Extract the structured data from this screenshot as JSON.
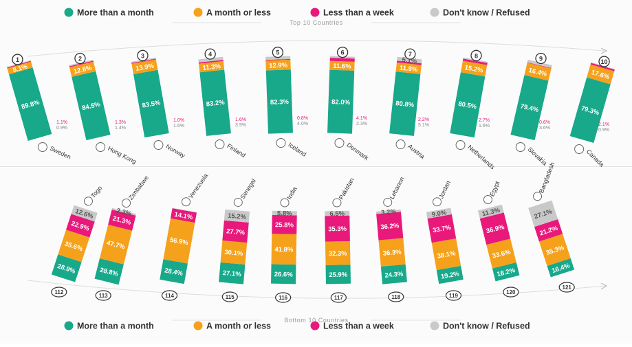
{
  "colors": {
    "more_than_month": "#18a88a",
    "month_or_less": "#f5a11c",
    "less_than_week": "#e8197a",
    "dont_know": "#c9c9c9"
  },
  "legend": [
    {
      "key": "more_than_month",
      "label": "More than a month"
    },
    {
      "key": "month_or_less",
      "label": "A month or less"
    },
    {
      "key": "less_than_week",
      "label": "Less than a week"
    },
    {
      "key": "dont_know",
      "label": "Don't know / Refused"
    }
  ],
  "chart_data": [
    {
      "type": "bar",
      "title": "Top 10 Countries",
      "stacked": true,
      "categories": [
        "Sweden",
        "Hong Kong",
        "Norway",
        "Finland",
        "Iceland",
        "Denmark",
        "Austria",
        "Netherlands",
        "Slovakia",
        "Canada"
      ],
      "ranks": [
        "1",
        "2",
        "3",
        "4",
        "5",
        "6",
        "7",
        "8",
        "9",
        "10"
      ],
      "series": [
        {
          "name": "More than a month",
          "key": "more_than_month",
          "values": [
            89.8,
            84.5,
            83.5,
            83.2,
            82.3,
            82.0,
            80.8,
            80.5,
            79.4,
            79.3
          ],
          "labels": [
            "89.8%",
            "84.5%",
            "83.5%",
            "83.2%",
            "82.3%",
            "82.0%",
            "80.8%",
            "80.5%",
            "79.4%",
            "79.3%"
          ]
        },
        {
          "name": "A month or less",
          "key": "month_or_less",
          "values": [
            8.1,
            12.8,
            13.9,
            11.3,
            12.9,
            11.6,
            11.9,
            15.2,
            16.4,
            17.6
          ],
          "labels": [
            "8.1%",
            "12.8%",
            "13.9%",
            "11.3%",
            "12.9%",
            "11.6%",
            "11.9%",
            "15.2%",
            "16.4%",
            "17.6%"
          ]
        },
        {
          "name": "Less than a week",
          "key": "less_than_week",
          "values": [
            1.1,
            1.3,
            1.0,
            1.6,
            0.8,
            4.1,
            2.2,
            2.7,
            0.6,
            2.1
          ],
          "labels": [
            "1.1%",
            "1.3%",
            "1.0%",
            "1.6%",
            "0.8%",
            "4.1%",
            "2.2%",
            "2.7%",
            "0.6%",
            "2.1%"
          ]
        },
        {
          "name": "Don't know / Refused",
          "key": "dont_know",
          "values": [
            0.9,
            1.4,
            1.6,
            3.9,
            4.0,
            2.3,
            5.1,
            1.6,
            3.6,
            0.9
          ],
          "labels": [
            "0.9%",
            "1.4%",
            "1.6%",
            "3.9%",
            "4.0%",
            "2.3%",
            "5.1%",
            "1.6%",
            "3.6%",
            "0.9%"
          ]
        }
      ]
    },
    {
      "type": "bar",
      "title": "Bottom 10 Countries",
      "stacked": true,
      "categories": [
        "Togo",
        "Zimbabwe",
        "Venezuela",
        "Senegal",
        "India",
        "Pakistan",
        "Lebanon",
        "Jordan",
        "Egypt",
        "Bangladesh"
      ],
      "ranks": [
        "112",
        "113",
        "114",
        "115",
        "116",
        "117",
        "118",
        "119",
        "120",
        "121"
      ],
      "series": [
        {
          "name": "More than a month",
          "key": "more_than_month",
          "values": [
            28.9,
            28.8,
            28.4,
            27.1,
            26.6,
            25.9,
            24.3,
            19.2,
            18.2,
            16.4
          ],
          "labels": [
            "28.9%",
            "28.8%",
            "28.4%",
            "27.1%",
            "26.6%",
            "25.9%",
            "24.3%",
            "19.2%",
            "18.2%",
            "16.4%"
          ]
        },
        {
          "name": "A month or less",
          "key": "month_or_less",
          "values": [
            35.6,
            47.7,
            56.9,
            30.1,
            41.8,
            32.3,
            36.3,
            38.1,
            33.6,
            35.3
          ],
          "labels": [
            "35.6%",
            "47.7%",
            "56.9%",
            "30.1%",
            "41.8%",
            "32.3%",
            "36.3%",
            "38.1%",
            "33.6%",
            "35.3%"
          ]
        },
        {
          "name": "Less than a week",
          "key": "less_than_week",
          "values": [
            22.9,
            21.3,
            14.1,
            27.7,
            25.8,
            35.3,
            36.2,
            33.7,
            36.9,
            21.2
          ],
          "labels": [
            "22.9%",
            "21.3%",
            "14.1%",
            "27.7%",
            "25.8%",
            "35.3%",
            "36.2%",
            "33.7%",
            "36.9%",
            "21.2%"
          ]
        },
        {
          "name": "Don't know / Refused",
          "key": "dont_know",
          "values": [
            12.6,
            2.3,
            0.6,
            15.2,
            5.8,
            6.5,
            3.2,
            9.0,
            11.3,
            27.1
          ],
          "labels": [
            "12.6%",
            "2.3%",
            "0.6%",
            "15.2%",
            "5.8%",
            "6.5%",
            "3.2%",
            "9.0%",
            "11.3%",
            "27.1%"
          ]
        }
      ]
    }
  ]
}
